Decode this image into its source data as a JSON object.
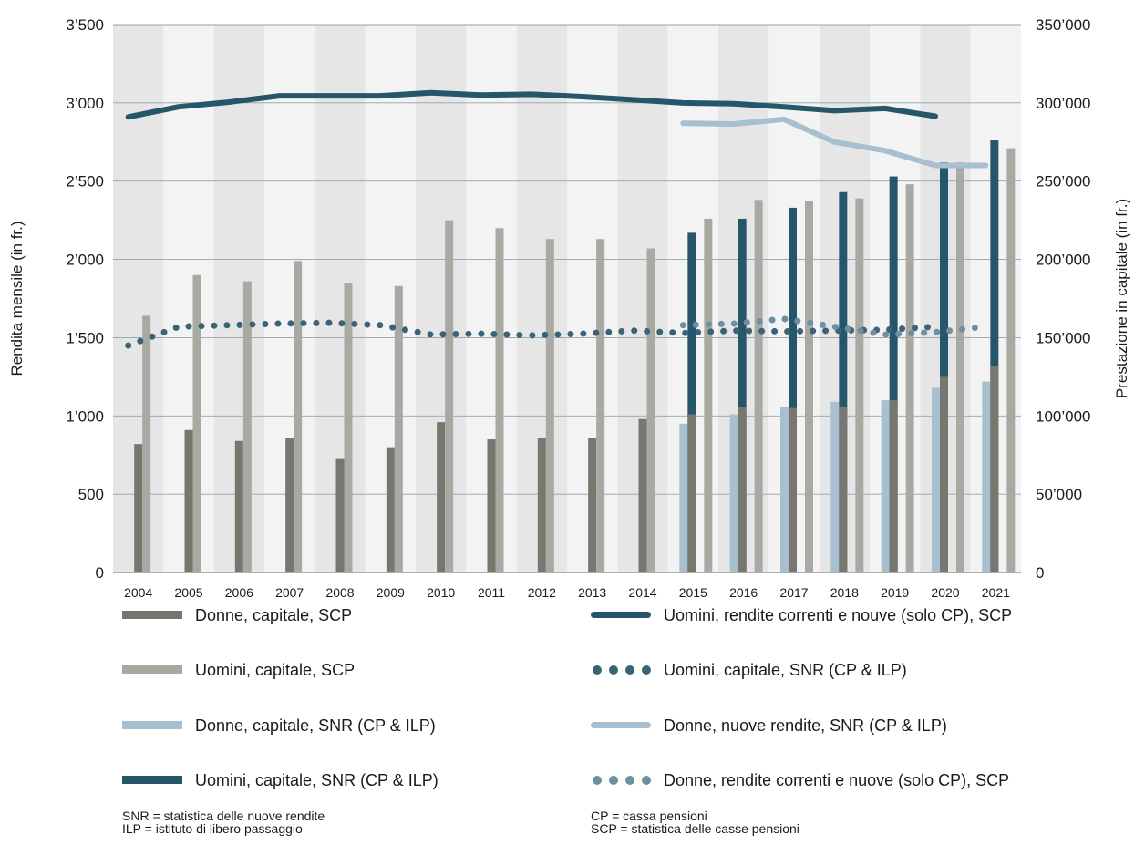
{
  "chart_data": {
    "type": "bar",
    "categories": [
      "2004",
      "2005",
      "2006",
      "2007",
      "2008",
      "2009",
      "2010",
      "2011",
      "2012",
      "2013",
      "2014",
      "2015",
      "2016",
      "2017",
      "2018",
      "2019",
      "2020",
      "2021"
    ],
    "ylabel_left": "Rendita mensile (in fr.)",
    "ylabel_right": "Prestazione in capitale (in fr.)",
    "ylim_left": [
      0,
      3500
    ],
    "ylim_right": [
      0,
      350000
    ],
    "yticks_left": [
      "0",
      "500",
      "1’000",
      "1’500",
      "2’000",
      "2’500",
      "3’000",
      "3’500"
    ],
    "yticks_right": [
      "0",
      "50’000",
      "100’000",
      "150’000",
      "200’000",
      "250’000",
      "300’000",
      "350’000"
    ],
    "grid": true,
    "bar_series": [
      {
        "name": "Donne, capitale, SNR (CP & ILP)",
        "color": "#a7bfcf",
        "axis": "right",
        "values": [
          null,
          null,
          null,
          null,
          null,
          null,
          null,
          null,
          null,
          null,
          null,
          95000,
          101000,
          106000,
          109000,
          110000,
          118000,
          122000
        ]
      },
      {
        "name": "Uomini, capitale, SNR (CP & ILP)",
        "color": "#255669",
        "axis": "right",
        "values": [
          null,
          null,
          null,
          null,
          null,
          null,
          null,
          null,
          null,
          null,
          null,
          217000,
          226000,
          233000,
          243000,
          253000,
          262000,
          276000
        ]
      },
      {
        "name": "Donne, capitale, SCP",
        "color": "#77776f",
        "axis": "right",
        "values": [
          82000,
          91000,
          84000,
          86000,
          73000,
          80000,
          96000,
          85000,
          86000,
          86000,
          98000,
          101000,
          106000,
          105000,
          106000,
          110000,
          125000,
          132000
        ]
      },
      {
        "name": "Uomini, capitale, SCP",
        "color": "#a9a9a3",
        "axis": "right",
        "values": [
          164000,
          190000,
          186000,
          199000,
          185000,
          183000,
          225000,
          220000,
          213000,
          213000,
          207000,
          226000,
          238000,
          237000,
          239000,
          248000,
          262000,
          271000
        ]
      }
    ],
    "line_series": [
      {
        "name": "Uomini, rendite correnti e nouve (solo CP), SCP",
        "color": "#255669",
        "style": "solid",
        "axis": "left",
        "values": [
          2910,
          2975,
          3005,
          3045,
          3045,
          3045,
          3065,
          3050,
          3055,
          3040,
          3020,
          3000,
          2995,
          2975,
          2950,
          2965,
          2915,
          null
        ]
      },
      {
        "name": "Uomini, capitale, SNR (CP & ILP)",
        "color": "#3b6378",
        "style": "dots",
        "axis": "left",
        "values": [
          1450,
          1570,
          1580,
          1590,
          1595,
          1580,
          1520,
          1525,
          1515,
          1525,
          1545,
          1530,
          1545,
          1540,
          1545,
          1550,
          1570,
          null
        ]
      },
      {
        "name": "Donne, nuove rendite, SNR (CP & ILP)",
        "color": "#a7bfcf",
        "style": "solid",
        "axis": "left",
        "values": [
          null,
          null,
          null,
          null,
          null,
          null,
          null,
          null,
          null,
          null,
          null,
          2870,
          2865,
          2895,
          2750,
          2695,
          2600,
          2600
        ]
      },
      {
        "name": "Donne, rendite correnti e nuove (solo CP), SCP",
        "color": "#6e8ea1",
        "style": "dots",
        "axis": "left",
        "values": [
          null,
          null,
          null,
          null,
          null,
          null,
          null,
          null,
          null,
          null,
          null,
          1580,
          1590,
          1620,
          1570,
          1520,
          1535,
          1570
        ]
      }
    ],
    "legend": {
      "left": [
        {
          "label": "Donne, capitale, SCP",
          "kind": "bar",
          "color": "#77776f"
        },
        {
          "label": "Uomini, capitale, SCP",
          "kind": "bar",
          "color": "#a9a9a3"
        },
        {
          "label": "Donne, capitale, SNR (CP & ILP)",
          "kind": "bar",
          "color": "#a7bfcf"
        },
        {
          "label": "Uomini, capitale, SNR (CP & ILP)",
          "kind": "bar",
          "color": "#255669"
        }
      ],
      "right": [
        {
          "label": "Uomini, rendite correnti e nouve (solo CP), SCP",
          "kind": "line",
          "color": "#255669"
        },
        {
          "label": "Uomini, capitale, SNR (CP & ILP)",
          "kind": "dots",
          "color": "#3b6378"
        },
        {
          "label": "Donne, nuove rendite, SNR (CP & ILP)",
          "kind": "line",
          "color": "#a7bfcf"
        },
        {
          "label": "Donne, rendite correnti e nuove (solo CP), SCP",
          "kind": "dots",
          "color": "#6e8ea1"
        }
      ]
    },
    "notes": {
      "left": [
        "SNR = statistica delle nuove rendite",
        "ILP = istituto di libero passaggio"
      ],
      "right": [
        "CP = cassa pensioni",
        "SCP = statistica delle casse pensioni"
      ]
    }
  }
}
